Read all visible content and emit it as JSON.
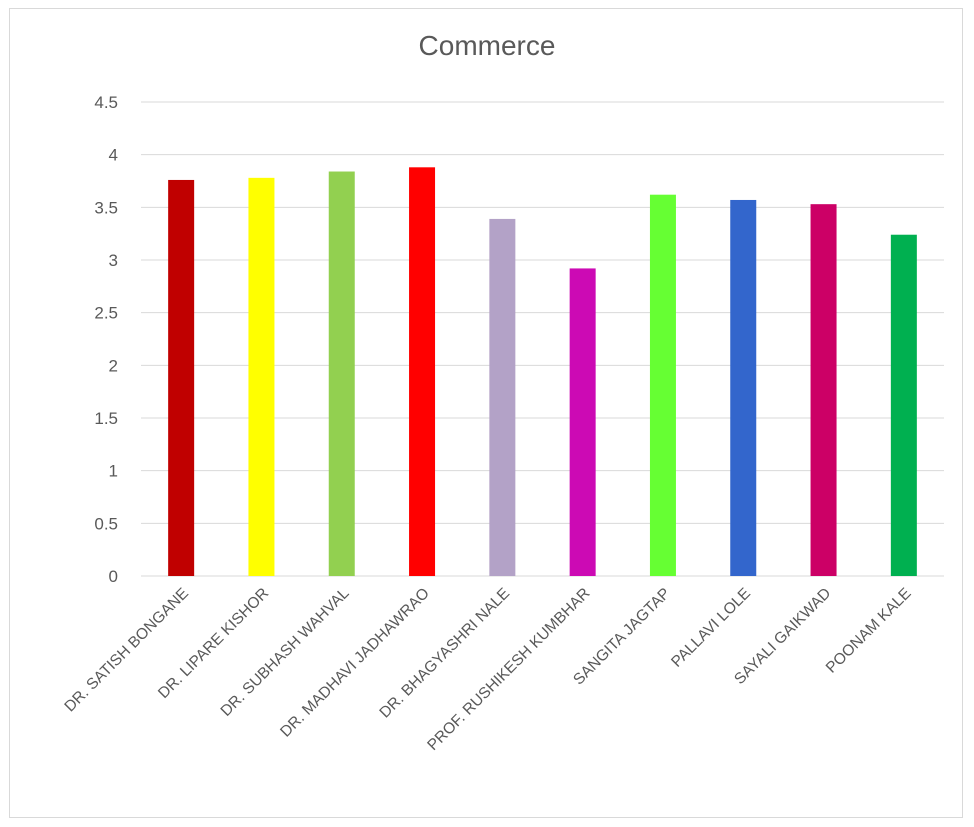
{
  "chart_data": {
    "type": "bar",
    "title": "Commerce",
    "xlabel": "",
    "ylabel": "",
    "ylim": [
      0,
      4.5
    ],
    "yticks": [
      "0",
      "0.5",
      "1",
      "1.5",
      "2",
      "2.5",
      "3",
      "3.5",
      "4",
      "4.5"
    ],
    "grid": true,
    "legend": "none",
    "categories": [
      "DR. SATISH BONGANE",
      "DR. LIPARE KISHOR",
      "DR. SUBHASH WAHVAL",
      "DR. MADHAVI JADHAWRAO",
      "DR. BHAGYASHRI NALE",
      "PROF. RUSHIKESH KUMBHAR",
      "SANGITA JAGTAP",
      "PALLAVI LOLE",
      "SAYALI GAIKWAD",
      "POONAM KALE"
    ],
    "values": [
      3.76,
      3.78,
      3.84,
      3.88,
      3.39,
      2.92,
      3.62,
      3.57,
      3.53,
      3.24
    ],
    "colors": [
      "#C00000",
      "#FFFF00",
      "#92D050",
      "#FF0000",
      "#B3A2C7",
      "#CC0AB4",
      "#66FF33",
      "#3366CC",
      "#CC0066",
      "#00B050"
    ]
  }
}
